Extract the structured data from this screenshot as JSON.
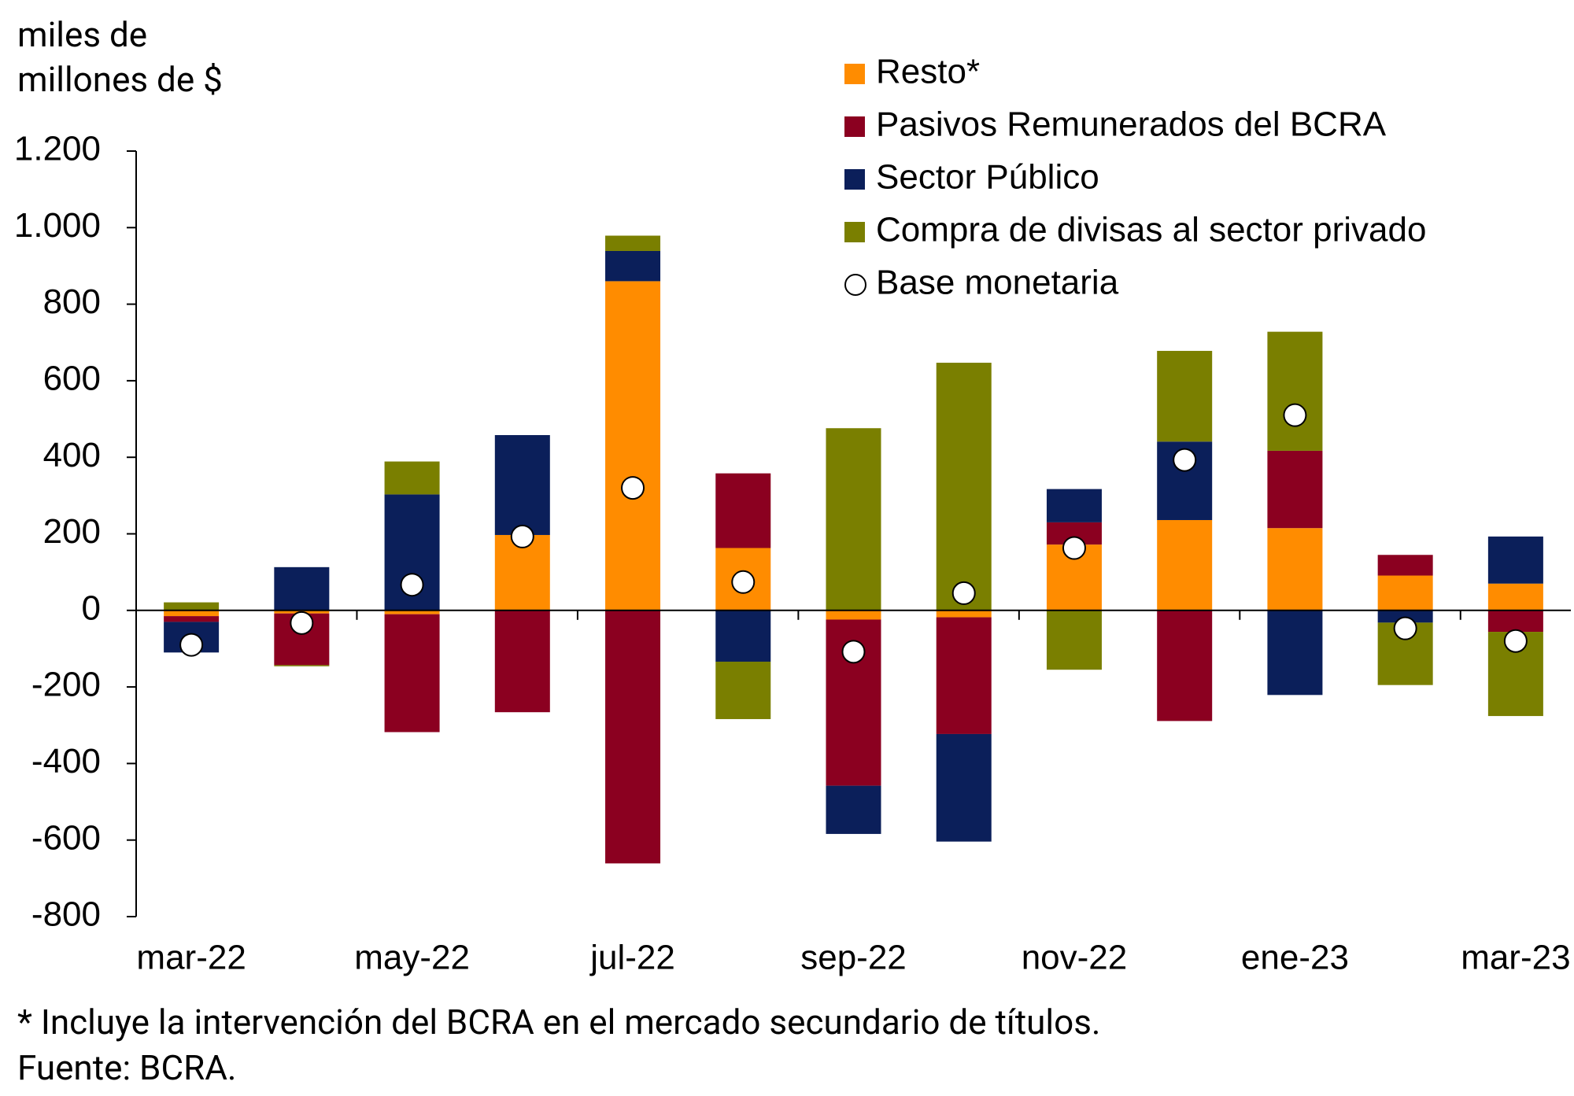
{
  "chart_data": {
    "type": "bar",
    "stacked": true,
    "ylabel": "miles de millones de $",
    "categories": [
      "mar-22",
      null,
      "may-22",
      null,
      "jul-22",
      null,
      "sep-22",
      null,
      "nov-22",
      null,
      "ene-23",
      null,
      "mar-23"
    ],
    "series": [
      {
        "name": "Resto*",
        "color": "#ff8c00",
        "values": [
          -15,
          -8,
          -10,
          197,
          860,
          163,
          -24,
          -18,
          172,
          236,
          215,
          91,
          70
        ]
      },
      {
        "name": "Pasivos Remunerados del BCRA",
        "color": "#8b0020",
        "values": [
          -15,
          -135,
          -308,
          -266,
          -661,
          195,
          -434,
          -305,
          58,
          -289,
          202,
          54,
          -56
        ]
      },
      {
        "name": "Sector Público",
        "color": "#0b1f5a",
        "values": [
          -80,
          113,
          303,
          261,
          79,
          -134,
          -126,
          -281,
          87,
          205,
          -221,
          -32,
          123
        ]
      },
      {
        "name": "Compra de divisas al sector privado",
        "color": "#7a7f00",
        "values": [
          21,
          -3,
          86,
          0,
          40,
          -150,
          476,
          647,
          -155,
          237,
          311,
          -163,
          -220
        ]
      },
      {
        "name": "Base monetaria",
        "type": "scatter",
        "color": "#ffffff",
        "values": [
          -90,
          -33,
          67,
          193,
          320,
          74,
          -108,
          45,
          163,
          393,
          510,
          -47,
          -80
        ]
      }
    ],
    "ylim": [
      -800,
      1200
    ],
    "yticks": [
      {
        "value": 1200,
        "label": "1.200"
      },
      {
        "value": 1000,
        "label": "1.000"
      },
      800,
      600,
      400,
      200,
      0,
      -200,
      -400,
      -600,
      -800
    ],
    "notes": [
      "* Incluye la intervención del BCRA en el mercado secundario de títulos.",
      "Fuente: BCRA."
    ]
  }
}
